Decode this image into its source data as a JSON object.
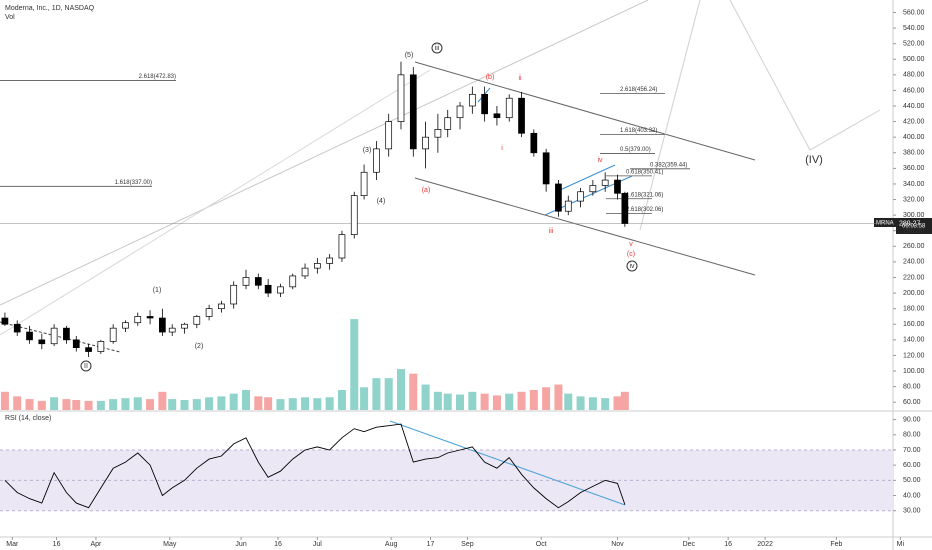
{
  "header": {
    "title": "Moderna, Inc., 1D, NASDAQ",
    "volume_label": "Vol",
    "rsi_label": "RSI (14, close)",
    "symbol": "MRNA",
    "countdown": "06:03:58"
  },
  "chart_data": {
    "type": "candlestick",
    "x": [
      -3,
      2,
      7,
      12,
      17,
      22,
      26,
      31,
      36,
      41,
      46,
      51,
      56,
      61,
      65,
      70,
      75,
      80,
      85,
      90,
      95,
      100,
      104,
      109,
      114,
      119,
      124,
      129,
      134,
      139,
      143,
      148,
      153,
      158,
      163,
      168,
      173,
      177,
      182,
      187,
      192,
      197,
      202,
      207,
      212,
      217,
      222,
      226,
      231,
      236,
      241,
      246,
      249
    ],
    "open": [
      168,
      160,
      150,
      140,
      135,
      155,
      140,
      130,
      125,
      138,
      155,
      162,
      170,
      168,
      150,
      155,
      160,
      170,
      180,
      186,
      210,
      220,
      210,
      200,
      208,
      222,
      232,
      238,
      245,
      275,
      325,
      355,
      385,
      420,
      480,
      385,
      400,
      410,
      425,
      440,
      455,
      430,
      425,
      450,
      405,
      380,
      340,
      305,
      318,
      330,
      338,
      345,
      328
    ],
    "high": [
      175,
      165,
      158,
      148,
      160,
      158,
      145,
      135,
      140,
      160,
      165,
      175,
      178,
      180,
      160,
      162,
      172,
      185,
      190,
      215,
      230,
      225,
      218,
      212,
      225,
      238,
      245,
      250,
      280,
      330,
      365,
      395,
      430,
      497,
      490,
      420,
      430,
      435,
      445,
      465,
      465,
      440,
      455,
      458,
      410,
      385,
      345,
      325,
      335,
      345,
      355,
      352,
      330
    ],
    "low": [
      158,
      145,
      135,
      128,
      132,
      135,
      125,
      118,
      122,
      135,
      150,
      158,
      160,
      145,
      145,
      148,
      155,
      165,
      175,
      180,
      205,
      205,
      195,
      195,
      205,
      218,
      225,
      230,
      240,
      270,
      320,
      345,
      375,
      410,
      375,
      360,
      380,
      400,
      410,
      430,
      420,
      415,
      420,
      400,
      375,
      330,
      298,
      300,
      310,
      325,
      330,
      320,
      285
    ],
    "close": [
      160,
      150,
      140,
      135,
      155,
      140,
      130,
      125,
      138,
      155,
      162,
      170,
      168,
      150,
      155,
      160,
      170,
      180,
      186,
      210,
      220,
      210,
      200,
      208,
      222,
      232,
      238,
      245,
      275,
      325,
      355,
      385,
      420,
      480,
      385,
      400,
      410,
      425,
      440,
      455,
      430,
      425,
      450,
      405,
      380,
      340,
      305,
      318,
      330,
      338,
      345,
      328,
      289.27
    ],
    "volume": [
      20,
      15,
      12,
      10,
      14,
      12,
      11,
      10,
      10,
      12,
      13,
      14,
      12,
      20,
      12,
      11,
      12,
      14,
      15,
      18,
      22,
      15,
      14,
      12,
      13,
      14,
      13,
      14,
      22,
      100,
      25,
      35,
      35,
      45,
      40,
      28,
      20,
      18,
      17,
      20,
      18,
      16,
      18,
      20,
      22,
      25,
      28,
      18,
      15,
      14,
      13,
      15,
      20
    ],
    "rsi": [
      50,
      42,
      38,
      35,
      55,
      42,
      35,
      32,
      45,
      58,
      62,
      68,
      60,
      40,
      45,
      50,
      58,
      64,
      66,
      74,
      78,
      62,
      52,
      56,
      64,
      70,
      72,
      70,
      78,
      84,
      82,
      85,
      86,
      87,
      62,
      64,
      65,
      68,
      70,
      72,
      62,
      58,
      65,
      54,
      45,
      38,
      32,
      36,
      42,
      46,
      50,
      48,
      34
    ],
    "up_color": "#ffffff",
    "down_color": "#000000",
    "volume_up_color": "#8fd3cb",
    "volume_down_color": "#f5a5a3",
    "rsi_color": "#000000",
    "rsi_band_color": "#ebe7f5",
    "last_price": 289.27,
    "xlim": [
      -5,
      358
    ],
    "ylim": [
      50,
      576
    ],
    "vlim": [
      0,
      110
    ],
    "rlim": [
      14,
      95
    ],
    "xticks": [
      {
        "value": 0,
        "label": "Mar"
      },
      {
        "value": 18,
        "label": "16"
      },
      {
        "value": 34,
        "label": "Apr"
      },
      {
        "value": 64,
        "label": "May"
      },
      {
        "value": 93,
        "label": "Jun"
      },
      {
        "value": 108,
        "label": "16"
      },
      {
        "value": 124,
        "label": "Jul"
      },
      {
        "value": 154,
        "label": "Aug"
      },
      {
        "value": 170,
        "label": "17"
      },
      {
        "value": 185,
        "label": "Sep"
      },
      {
        "value": 215,
        "label": "Oct"
      },
      {
        "value": 246,
        "label": "Nov"
      },
      {
        "value": 275,
        "label": "Dec"
      },
      {
        "value": 291,
        "label": "16"
      },
      {
        "value": 306,
        "label": "2022"
      },
      {
        "value": 335,
        "label": "Feb"
      },
      {
        "value": 361,
        "label": "Mi"
      }
    ],
    "yticks": [
      {
        "value": 60,
        "label": "60.00"
      },
      {
        "value": 80,
        "label": "80.00"
      },
      {
        "value": 100,
        "label": "100.00"
      },
      {
        "value": 120,
        "label": "120.00"
      },
      {
        "value": 140,
        "label": "140.00"
      },
      {
        "value": 160,
        "label": "160.00"
      },
      {
        "value": 180,
        "label": "180.00"
      },
      {
        "value": 200,
        "label": "200.00"
      },
      {
        "value": 220,
        "label": "220.00"
      },
      {
        "value": 240,
        "label": "240.00"
      },
      {
        "value": 260,
        "label": "260.00"
      },
      {
        "value": 280,
        "label": "280.00"
      },
      {
        "value": 300,
        "label": "300.00"
      },
      {
        "value": 320,
        "label": "320.00"
      },
      {
        "value": 340,
        "label": "340.00"
      },
      {
        "value": 360,
        "label": "360.00"
      },
      {
        "value": 380,
        "label": "380.00"
      },
      {
        "value": 400,
        "label": "400.00"
      },
      {
        "value": 420,
        "label": "420.00"
      },
      {
        "value": 440,
        "label": "440.00"
      },
      {
        "value": 460,
        "label": "460.00"
      },
      {
        "value": 480,
        "label": "480.00"
      },
      {
        "value": 500,
        "label": "500.00"
      },
      {
        "value": 520,
        "label": "520.00"
      },
      {
        "value": 540,
        "label": "540.00"
      },
      {
        "value": 560,
        "label": "560.00"
      }
    ],
    "rticks": [
      {
        "value": 30,
        "label": "30.00"
      },
      {
        "value": 40,
        "label": "40.00"
      },
      {
        "value": 50,
        "label": "50.00"
      },
      {
        "value": 60,
        "label": "60.00"
      },
      {
        "value": 70,
        "label": "70.00"
      },
      {
        "value": 80,
        "label": "80.00"
      },
      {
        "value": 90,
        "label": "90.00"
      }
    ],
    "fib_levels": [
      {
        "value": 472.83,
        "label": "2.618(472.83)"
      },
      {
        "value": 337,
        "label": "1.618(337.00)"
      },
      {
        "value": 456.24,
        "label": "2.618(456.24)"
      },
      {
        "value": 403.32,
        "label": "1.618(403.32)"
      },
      {
        "value": 379,
        "label": "0.5(379.00)"
      },
      {
        "value": 359.44,
        "label": "0.382(359.44)"
      },
      {
        "value": 350.41,
        "label": "0.618(350.41)"
      },
      {
        "value": 321.06,
        "label": "1.618(321.06)"
      },
      {
        "value": 302.06,
        "label": "2.618(302.06)"
      }
    ],
    "annotations": [
      "(5)",
      "iii",
      "(b)",
      "ii",
      "(a)",
      "i",
      "iii",
      "iv",
      "v",
      "(c)",
      "iv",
      "(IV)",
      "(1)",
      "(2)",
      "(3)",
      "(4)",
      "II"
    ]
  }
}
